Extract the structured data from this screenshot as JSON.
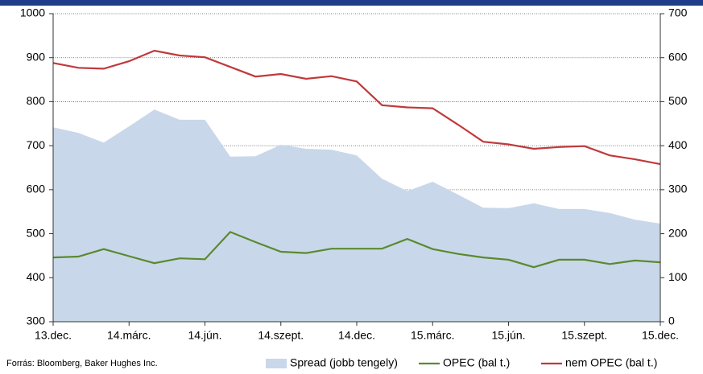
{
  "chart_data": {
    "type": "line",
    "categories": [
      "13.dec.",
      null,
      null,
      "14.márc.",
      null,
      null,
      "14.jún.",
      null,
      null,
      "14.szept.",
      null,
      null,
      "14.dec.",
      null,
      null,
      "15.márc.",
      null,
      null,
      "15.jún.",
      null,
      null,
      "15.szept.",
      null,
      null,
      "15.dec."
    ],
    "series": [
      {
        "name": "Spread (jobb tengely)",
        "color": "#c9d7ea",
        "axis": "y2",
        "kind": "area",
        "values": [
          442,
          429,
          407,
          444,
          482,
          459,
          459,
          375,
          376,
          402,
          393,
          391,
          378,
          325,
          297,
          318,
          289,
          259,
          258,
          269,
          256,
          256,
          247,
          232,
          223
        ]
      },
      {
        "name": "OPEC (bal t.)",
        "color": "#5a8a2e",
        "values": [
          446,
          448,
          465,
          449,
          433,
          444,
          442,
          504,
          481,
          459,
          456,
          466,
          466,
          466,
          488,
          465,
          454,
          446,
          441,
          424,
          441,
          441,
          431,
          439,
          435
        ]
      },
      {
        "name": "nem OPEC (bal t.)",
        "color": "#c0393b",
        "values": [
          888,
          877,
          875,
          892,
          916,
          905,
          901,
          879,
          857,
          863,
          852,
          858,
          846,
          792,
          787,
          785,
          748,
          709,
          703,
          693,
          697,
          699,
          678,
          669,
          658
        ]
      }
    ],
    "ylim": [
      300,
      1000
    ],
    "yticks": [
      300,
      400,
      500,
      600,
      700,
      800,
      900,
      1000
    ],
    "y2lim": [
      0,
      700
    ],
    "y2ticks": [
      0,
      100,
      200,
      300,
      400,
      500,
      600,
      700
    ],
    "grid": true,
    "source": "Forrás: Bloomberg, Baker Hughes Inc."
  }
}
